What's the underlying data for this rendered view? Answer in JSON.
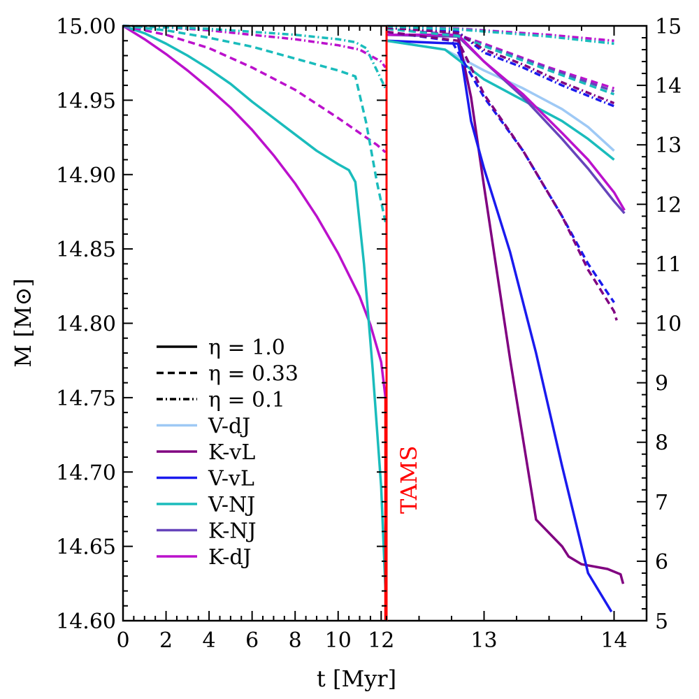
{
  "chart_data": {
    "type": "line",
    "xlabel": "t  [Myr]",
    "ylabel": "M [M⊙]",
    "marker_label": "TAMS",
    "marker_color": "#ff0000",
    "panels": [
      {
        "name": "left",
        "xlim": [
          0,
          12.25
        ],
        "ylim": [
          14.6,
          15.0
        ],
        "xticks": [
          0,
          2,
          4,
          6,
          8,
          10,
          12
        ],
        "xtick_labels": [
          "0",
          "2",
          "4",
          "6",
          "8",
          "10",
          "12"
        ],
        "yticks": [
          14.6,
          14.65,
          14.7,
          14.75,
          14.8,
          14.85,
          14.9,
          14.95,
          15.0
        ],
        "ytick_labels": [
          "14.60",
          "14.65",
          "14.70",
          "14.75",
          "14.80",
          "14.85",
          "14.90",
          "14.95",
          "15.00"
        ]
      },
      {
        "name": "right",
        "xlim": [
          12.25,
          14.25
        ],
        "ylim": [
          5,
          15
        ],
        "xticks": [
          13,
          14
        ],
        "xtick_labels": [
          "13",
          "14"
        ],
        "yticks": [
          5,
          6,
          7,
          8,
          9,
          10,
          11,
          12,
          13,
          14,
          15
        ],
        "ytick_labels": [
          "5",
          "6",
          "7",
          "8",
          "9",
          "10",
          "11",
          "12",
          "13",
          "14",
          "15"
        ]
      }
    ],
    "legend": {
      "position": "lower-left",
      "styles": [
        {
          "label": "η = 1.0",
          "dash": "solid"
        },
        {
          "label": "η = 0.33",
          "dash": "dashed"
        },
        {
          "label": "η = 0.1",
          "dash": "dashdot"
        }
      ],
      "models": [
        {
          "label": "V-dJ",
          "color": "#9ec9f5"
        },
        {
          "label": "K-vL",
          "color": "#800080"
        },
        {
          "label": "V-vL",
          "color": "#1a1aee"
        },
        {
          "label": "V-NJ",
          "color": "#1abcbc"
        },
        {
          "label": "K-NJ",
          "color": "#6644bb"
        },
        {
          "label": "K-dJ",
          "color": "#bb11cc"
        }
      ]
    },
    "series": [
      {
        "name": "K-dJ η=1.0",
        "panel": "left",
        "color": "#bb11cc",
        "dash": "solid",
        "x": [
          0,
          1,
          2,
          3,
          4,
          5,
          6,
          7,
          8,
          9,
          10,
          11,
          11.5,
          12,
          12.2
        ],
        "y": [
          15.0,
          14.991,
          14.981,
          14.97,
          14.958,
          14.945,
          14.93,
          14.913,
          14.894,
          14.872,
          14.847,
          14.818,
          14.799,
          14.774,
          14.75
        ]
      },
      {
        "name": "V-NJ η=1.0",
        "panel": "left",
        "color": "#1abcbc",
        "dash": "solid",
        "x": [
          0,
          1,
          2,
          3,
          4,
          5,
          6,
          7,
          8,
          9,
          10,
          10.5,
          10.8,
          11.2,
          11.6,
          12.0,
          12.2
        ],
        "y": [
          15.0,
          14.995,
          14.988,
          14.98,
          14.971,
          14.961,
          14.949,
          14.938,
          14.927,
          14.916,
          14.907,
          14.903,
          14.895,
          14.84,
          14.77,
          14.69,
          14.62
        ]
      },
      {
        "name": "K-dJ η=0.33",
        "panel": "left",
        "color": "#bb11cc",
        "dash": "dashed",
        "x": [
          0,
          2,
          4,
          6,
          8,
          10,
          11,
          11.8,
          12.2
        ],
        "y": [
          15.0,
          14.994,
          14.985,
          14.972,
          14.957,
          14.938,
          14.928,
          14.92,
          14.915
        ]
      },
      {
        "name": "V-NJ η=0.33",
        "panel": "left",
        "color": "#1abcbc",
        "dash": "dashed",
        "x": [
          0,
          2,
          4,
          6,
          8,
          10,
          10.8,
          11.3,
          11.8,
          12.2
        ],
        "y": [
          15.0,
          14.997,
          14.992,
          14.986,
          14.978,
          14.97,
          14.966,
          14.935,
          14.895,
          14.868
        ]
      },
      {
        "name": "K-dJ η=0.1",
        "panel": "left",
        "color": "#bb11cc",
        "dash": "dashdot",
        "x": [
          0,
          2,
          4,
          6,
          8,
          10,
          11,
          12,
          12.2
        ],
        "y": [
          15.0,
          14.999,
          14.997,
          14.994,
          14.991,
          14.987,
          14.984,
          14.976,
          14.972
        ]
      },
      {
        "name": "V-NJ η=0.1",
        "panel": "left",
        "color": "#1abcbc",
        "dash": "dashdot",
        "x": [
          0,
          2,
          4,
          6,
          8,
          10,
          10.8,
          11.3,
          11.8,
          12.2
        ],
        "y": [
          15.0,
          14.999,
          14.998,
          14.996,
          14.994,
          14.991,
          14.989,
          14.985,
          14.97,
          14.958
        ]
      },
      {
        "name": "TAMS marker",
        "panel": "left",
        "color": "#ff0000",
        "dash": "solid",
        "x": [
          12.2,
          12.2
        ],
        "y": [
          14.75,
          14.6
        ]
      },
      {
        "name": "V-dJ η=1.0",
        "panel": "right",
        "color": "#9ec9f5",
        "dash": "solid",
        "x": [
          12.25,
          12.7,
          13.0,
          13.3,
          13.6,
          13.8,
          14.0
        ],
        "y": [
          14.75,
          14.6,
          14.25,
          13.95,
          13.6,
          13.3,
          12.9
        ]
      },
      {
        "name": "K-vL η=1.0",
        "panel": "right",
        "color": "#800080",
        "dash": "solid",
        "x": [
          12.25,
          12.8,
          12.9,
          13.0,
          13.2,
          13.4,
          13.6,
          13.65,
          13.75,
          13.95,
          14.05,
          14.07
        ],
        "y": [
          14.85,
          14.83,
          13.8,
          12.3,
          9.4,
          6.7,
          6.25,
          6.08,
          5.95,
          5.87,
          5.78,
          5.62
        ]
      },
      {
        "name": "V-vL η=1.0",
        "panel": "right",
        "color": "#1a1aee",
        "dash": "solid",
        "x": [
          12.25,
          12.8,
          12.83,
          12.9,
          13.0,
          13.2,
          13.4,
          13.6,
          13.8,
          13.98
        ],
        "y": [
          14.75,
          14.7,
          14.4,
          13.4,
          12.6,
          11.2,
          9.5,
          7.6,
          5.8,
          5.15
        ]
      },
      {
        "name": "V-NJ η=1.0",
        "panel": "right",
        "color": "#1abcbc",
        "dash": "solid",
        "x": [
          12.25,
          12.7,
          13.0,
          13.3,
          13.6,
          13.8,
          14.0
        ],
        "y": [
          14.75,
          14.6,
          14.1,
          13.75,
          13.4,
          13.1,
          12.75
        ]
      },
      {
        "name": "K-NJ η=1.0",
        "panel": "right",
        "color": "#6644bb",
        "dash": "solid",
        "x": [
          12.25,
          12.8,
          13.0,
          13.3,
          13.6,
          13.8,
          14.0,
          14.08
        ],
        "y": [
          14.85,
          14.82,
          14.4,
          13.8,
          13.1,
          12.6,
          12.05,
          11.85
        ]
      },
      {
        "name": "K-dJ η=1.0",
        "panel": "right",
        "color": "#bb11cc",
        "dash": "solid",
        "x": [
          12.25,
          12.8,
          13.0,
          13.3,
          13.6,
          13.8,
          14.0,
          14.08
        ],
        "y": [
          14.85,
          14.85,
          14.4,
          13.85,
          13.2,
          12.75,
          12.2,
          11.9
        ]
      },
      {
        "name": "V-vL η=0.33",
        "panel": "right",
        "color": "#1a1aee",
        "dash": "dashed",
        "x": [
          12.25,
          12.75,
          13.0,
          13.3,
          13.6,
          13.8,
          14.0
        ],
        "y": [
          14.9,
          14.75,
          13.8,
          12.9,
          11.8,
          11.0,
          10.35
        ]
      },
      {
        "name": "K-vL η=0.33",
        "panel": "right",
        "color": "#800080",
        "dash": "dashed",
        "x": [
          12.25,
          12.8,
          13.0,
          13.3,
          13.6,
          13.8,
          14.0,
          14.02
        ],
        "y": [
          14.9,
          14.75,
          13.85,
          12.9,
          11.8,
          10.9,
          10.2,
          10.05
        ]
      },
      {
        "name": "K-dJ η=0.33",
        "panel": "right",
        "color": "#bb11cc",
        "dash": "dashed",
        "x": [
          12.25,
          12.8,
          13.0,
          13.5,
          14.0
        ],
        "y": [
          14.95,
          14.85,
          14.7,
          14.3,
          13.95
        ]
      },
      {
        "name": "K-NJ η=0.33",
        "panel": "right",
        "color": "#6644bb",
        "dash": "dashed",
        "x": [
          12.25,
          12.8,
          13.0,
          13.5,
          14.0
        ],
        "y": [
          14.95,
          14.84,
          14.68,
          14.28,
          13.9
        ]
      },
      {
        "name": "V-NJ η=0.33",
        "panel": "right",
        "color": "#1abcbc",
        "dash": "dashed",
        "x": [
          12.25,
          12.8,
          13.0,
          13.5,
          14.0
        ],
        "y": [
          14.95,
          14.83,
          14.66,
          14.25,
          13.85
        ]
      },
      {
        "name": "V-vL η=0.1",
        "panel": "right",
        "color": "#1a1aee",
        "dash": "dashdot",
        "x": [
          12.25,
          12.8,
          13.0,
          13.3,
          13.6,
          14.0
        ],
        "y": [
          14.97,
          14.9,
          14.55,
          14.3,
          14.0,
          13.65
        ]
      },
      {
        "name": "K-vL η=0.1",
        "panel": "right",
        "color": "#800080",
        "dash": "dashdot",
        "x": [
          12.25,
          12.8,
          13.0,
          13.3,
          13.6,
          14.0
        ],
        "y": [
          14.97,
          14.88,
          14.6,
          14.35,
          14.05,
          13.7
        ]
      },
      {
        "name": "V-dJ η=0.1",
        "panel": "right",
        "color": "#9ec9f5",
        "dash": "dashdot",
        "x": [
          12.25,
          12.8,
          13.5,
          14.0
        ],
        "y": [
          15.0,
          14.96,
          14.85,
          14.73
        ]
      },
      {
        "name": "K-dJ η=0.1",
        "panel": "right",
        "color": "#bb11cc",
        "dash": "dashdot",
        "x": [
          12.25,
          12.8,
          13.5,
          14.0
        ],
        "y": [
          14.99,
          14.95,
          14.85,
          14.75
        ]
      },
      {
        "name": "V-NJ η=0.1",
        "panel": "right",
        "color": "#1abcbc",
        "dash": "dashdot",
        "x": [
          12.25,
          12.8,
          13.5,
          14.0
        ],
        "y": [
          14.99,
          14.94,
          14.82,
          14.7
        ]
      }
    ]
  }
}
